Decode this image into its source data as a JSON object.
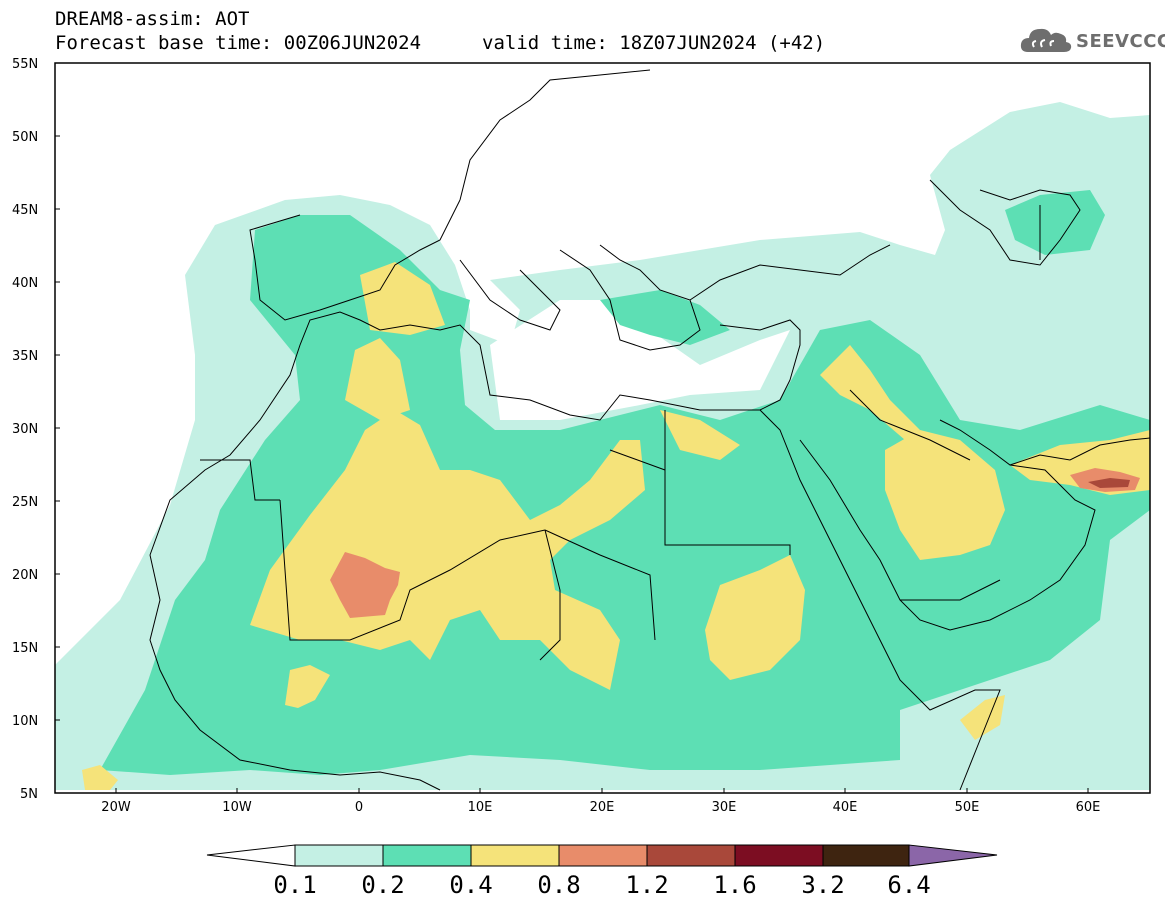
{
  "header": {
    "title": "DREAM8-assim: AOT",
    "base_time": "Forecast base time: 00Z06JUN2024",
    "valid_time": "valid time: 18Z07JUN2024 (+42)"
  },
  "logo": {
    "text": "SEEVCCC",
    "icon": "cloud-icon"
  },
  "map": {
    "projection": "lat-lon",
    "lon_range": [
      -25,
      65
    ],
    "lat_range": [
      5,
      55
    ],
    "lat_ticks": [
      "55N",
      "50N",
      "45N",
      "40N",
      "35N",
      "30N",
      "25N",
      "20N",
      "15N",
      "10N",
      "5N"
    ],
    "lon_ticks": [
      "20W",
      "10W",
      "0",
      "10E",
      "20E",
      "30E",
      "40E",
      "50E",
      "60E"
    ],
    "field": "Aerosol optical thickness (AOT)"
  },
  "colorbar": {
    "labels": [
      "0.1",
      "0.2",
      "0.4",
      "0.8",
      "1.2",
      "1.6",
      "3.2",
      "6.4"
    ],
    "colors": [
      "#ffffff",
      "#c4f0e4",
      "#5ddfb4",
      "#f5e37a",
      "#e88c6a",
      "#a9483a",
      "#7c0d22",
      "#3e2410",
      "#8b66a8"
    ]
  }
}
